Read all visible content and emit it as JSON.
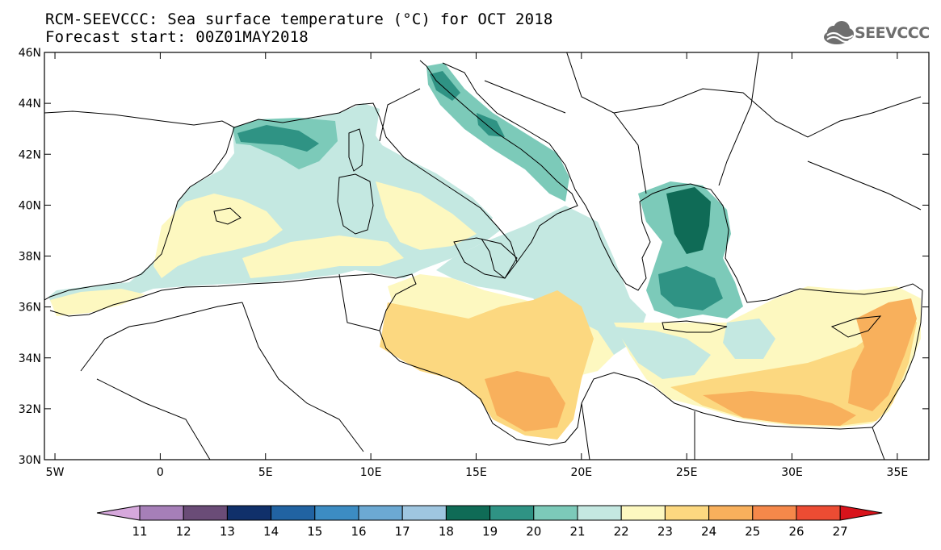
{
  "header": {
    "title_line1": "RCM-SEEVCCC: Sea surface temperature (°C) for OCT 2018",
    "title_line2": "Forecast start: 00Z01MAY2018",
    "logo_text": "SEEVCCC"
  },
  "map": {
    "lat_labels": [
      "46N",
      "44N",
      "42N",
      "40N",
      "38N",
      "36N",
      "34N",
      "32N",
      "30N"
    ],
    "lon_labels": [
      "5W",
      "0",
      "5E",
      "10E",
      "15E",
      "20E",
      "25E",
      "30E",
      "35E"
    ],
    "lat_range": [
      30,
      46
    ],
    "lon_range": [
      -5.5,
      36.5
    ],
    "land_color": "#ffffff",
    "border_color": "#000000"
  },
  "colorbar": {
    "labels": [
      "11",
      "12",
      "13",
      "14",
      "15",
      "16",
      "17",
      "18",
      "19",
      "20",
      "21",
      "22",
      "23",
      "24",
      "25",
      "26",
      "27"
    ],
    "under_color": "#d6a8dc",
    "over_color": "#d8131b",
    "colors": [
      "#a67fb8",
      "#6a4c77",
      "#10306a",
      "#2163a2",
      "#3c8cc3",
      "#6ca9d3",
      "#9fc6e0",
      "#0f6b56",
      "#2f9384",
      "#7ccab9",
      "#c4e8e1",
      "#fdf8c0",
      "#fcd880",
      "#f8b05c",
      "#f5884a",
      "#ec4c33"
    ]
  }
}
